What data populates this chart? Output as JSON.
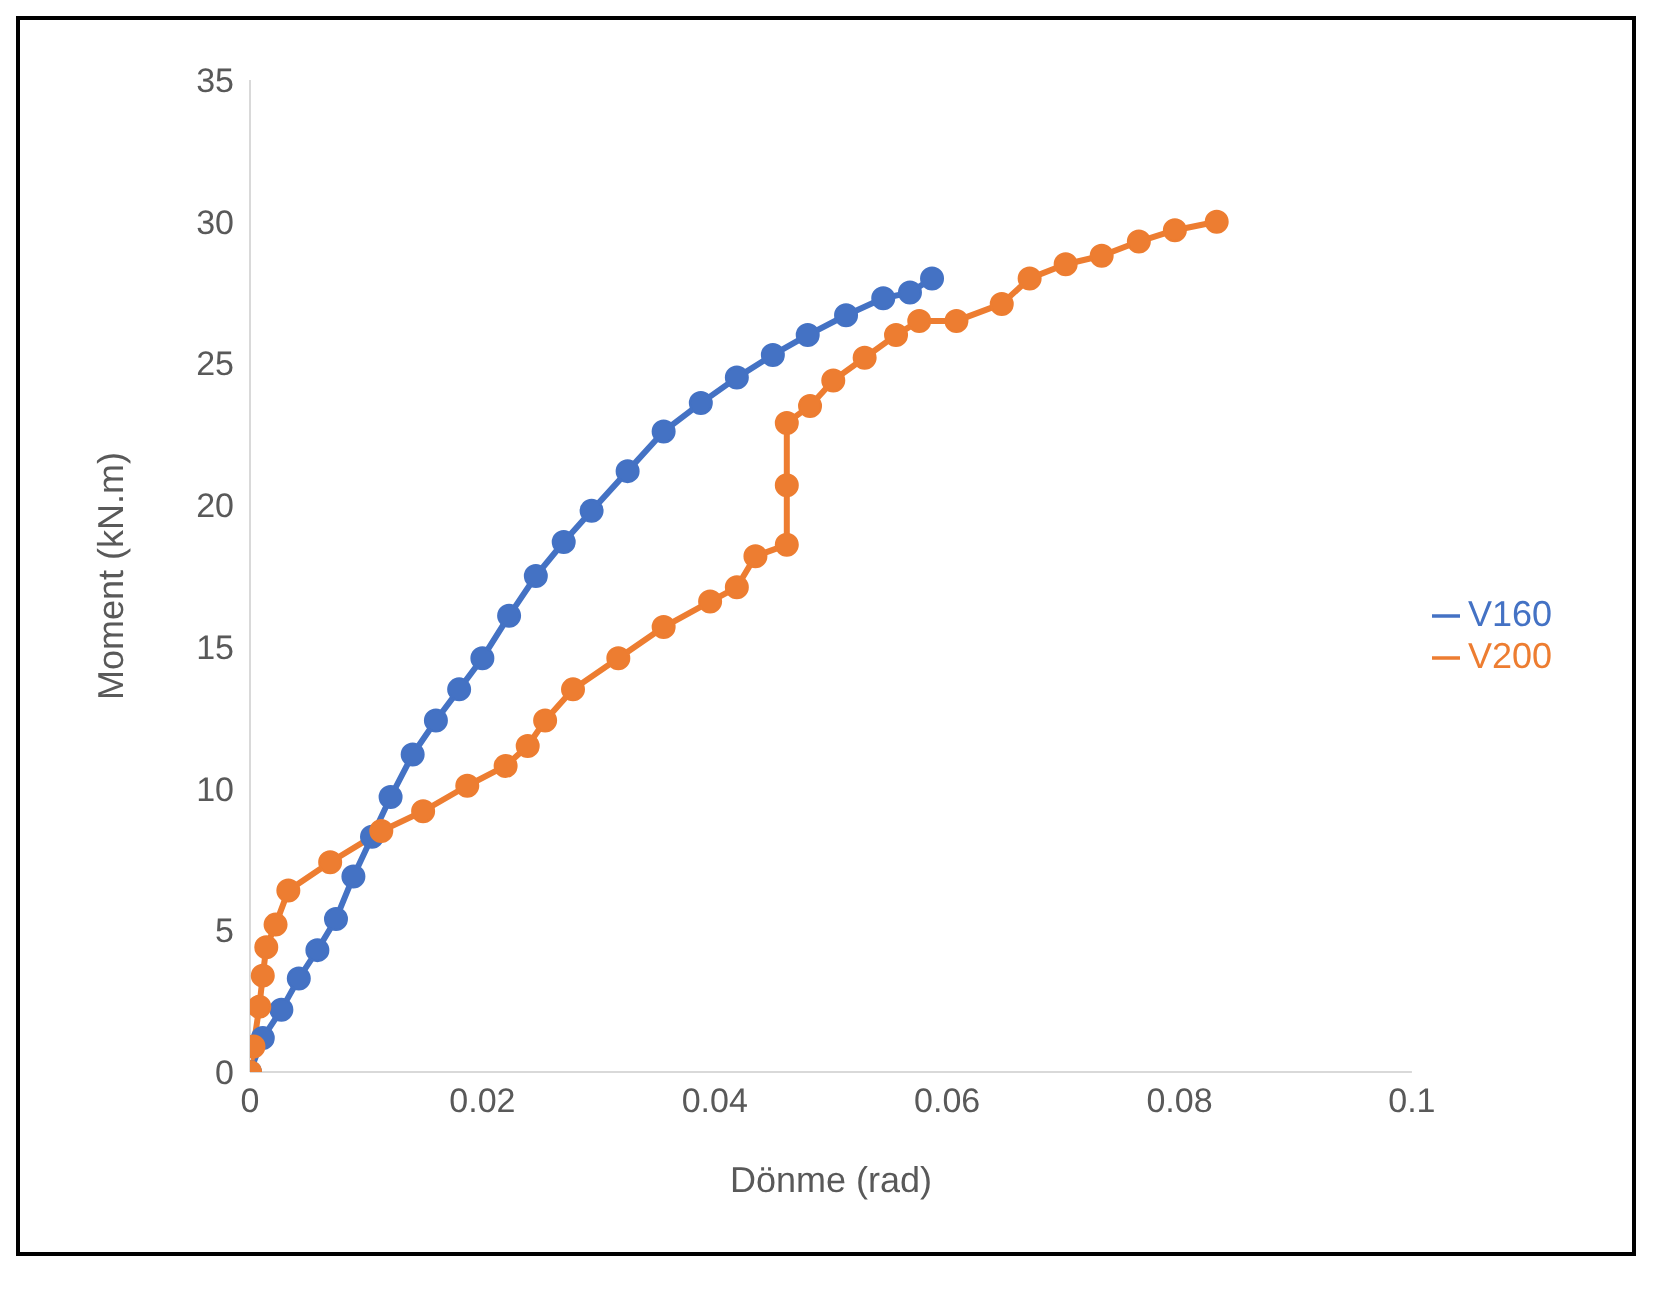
{
  "chart_data": {
    "type": "line",
    "xlabel": "Dönme (rad)",
    "ylabel": "Moment (kN.m)",
    "xlim": [
      0,
      0.1
    ],
    "xticks": [
      0,
      0.02,
      0.04,
      0.06,
      0.08,
      0.1
    ],
    "ylim": [
      0,
      35
    ],
    "yticks": [
      0,
      5,
      10,
      15,
      20,
      25,
      30,
      35
    ],
    "grid": false,
    "legend": "right",
    "marker": "circle",
    "line_style": "solid",
    "series": [
      {
        "name": "V160",
        "color": "#4472c4",
        "x": [
          0,
          0.0011,
          0.0027,
          0.0042,
          0.0058,
          0.0074,
          0.0089,
          0.0105,
          0.0121,
          0.014,
          0.016,
          0.018,
          0.02,
          0.0223,
          0.0246,
          0.027,
          0.0294,
          0.0325,
          0.0356,
          0.0388,
          0.0419,
          0.045,
          0.048,
          0.0513,
          0.0545,
          0.0568,
          0.0587
        ],
        "values": [
          0,
          1.2,
          2.2,
          3.3,
          4.3,
          5.4,
          6.9,
          8.3,
          9.7,
          11.2,
          12.4,
          13.5,
          14.6,
          16.1,
          17.5,
          18.7,
          19.8,
          21.2,
          22.6,
          23.6,
          24.5,
          25.3,
          26.0,
          26.7,
          27.3,
          27.5,
          28.0
        ]
      },
      {
        "name": "V200",
        "color": "#ed7d31",
        "x": [
          0,
          0.0003,
          0.0008,
          0.0011,
          0.0014,
          0.0022,
          0.0033,
          0.0069,
          0.0113,
          0.0149,
          0.0187,
          0.022,
          0.0239,
          0.0254,
          0.0278,
          0.0317,
          0.0356,
          0.0396,
          0.0419,
          0.0435,
          0.0462,
          0.0462,
          0.0462,
          0.0482,
          0.0502,
          0.0529,
          0.0556,
          0.0576,
          0.0608,
          0.0647,
          0.0671,
          0.0702,
          0.0733,
          0.0765,
          0.0796,
          0.0832
        ],
        "values": [
          0,
          0.9,
          2.3,
          3.4,
          4.4,
          5.2,
          6.4,
          7.4,
          8.5,
          9.2,
          10.1,
          10.8,
          11.5,
          12.4,
          13.5,
          14.6,
          15.7,
          16.6,
          17.1,
          18.2,
          18.6,
          20.7,
          22.9,
          23.5,
          24.4,
          25.2,
          26.0,
          26.5,
          26.5,
          27.1,
          28.0,
          28.5,
          28.8,
          29.3,
          29.7,
          30.0
        ]
      }
    ]
  }
}
